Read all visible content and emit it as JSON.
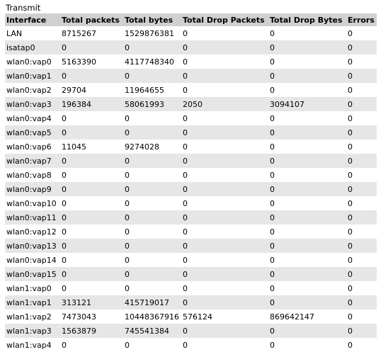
{
  "title": "Transmit",
  "headers": [
    "Interface",
    "Total packets",
    "Total bytes",
    "Total Drop Packets",
    "Total Drop Bytes",
    "Errors"
  ],
  "rows": [
    [
      "LAN",
      "8715267",
      "1529876381",
      "0",
      "0",
      "0"
    ],
    [
      "isatap0",
      "0",
      "0",
      "0",
      "0",
      "0"
    ],
    [
      "wlan0:vap0",
      "5163390",
      "4117748340",
      "0",
      "0",
      "0"
    ],
    [
      "wlan0:vap1",
      "0",
      "0",
      "0",
      "0",
      "0"
    ],
    [
      "wlan0:vap2",
      "29704",
      "11964655",
      "0",
      "0",
      "0"
    ],
    [
      "wlan0:vap3",
      "196384",
      "58061993",
      "2050",
      "3094107",
      "0"
    ],
    [
      "wlan0:vap4",
      "0",
      "0",
      "0",
      "0",
      "0"
    ],
    [
      "wlan0:vap5",
      "0",
      "0",
      "0",
      "0",
      "0"
    ],
    [
      "wlan0:vap6",
      "11045",
      "9274028",
      "0",
      "0",
      "0"
    ],
    [
      "wlan0:vap7",
      "0",
      "0",
      "0",
      "0",
      "0"
    ],
    [
      "wlan0:vap8",
      "0",
      "0",
      "0",
      "0",
      "0"
    ],
    [
      "wlan0:vap9",
      "0",
      "0",
      "0",
      "0",
      "0"
    ],
    [
      "wlan0:vap10",
      "0",
      "0",
      "0",
      "0",
      "0"
    ],
    [
      "wlan0:vap11",
      "0",
      "0",
      "0",
      "0",
      "0"
    ],
    [
      "wlan0:vap12",
      "0",
      "0",
      "0",
      "0",
      "0"
    ],
    [
      "wlan0:vap13",
      "0",
      "0",
      "0",
      "0",
      "0"
    ],
    [
      "wlan0:vap14",
      "0",
      "0",
      "0",
      "0",
      "0"
    ],
    [
      "wlan0:vap15",
      "0",
      "0",
      "0",
      "0",
      "0"
    ],
    [
      "wlan1:vap0",
      "0",
      "0",
      "0",
      "0",
      "0"
    ],
    [
      "wlan1:vap1",
      "313121",
      "415719017",
      "0",
      "0",
      "0"
    ],
    [
      "wlan1:vap2",
      "7473043",
      "10448367916",
      "576124",
      "869642147",
      "0"
    ],
    [
      "wlan1:vap3",
      "1563879",
      "745541384",
      "0",
      "0",
      "0"
    ],
    [
      "wlan1:vap4",
      "0",
      "0",
      "0",
      "0",
      "0"
    ]
  ]
}
